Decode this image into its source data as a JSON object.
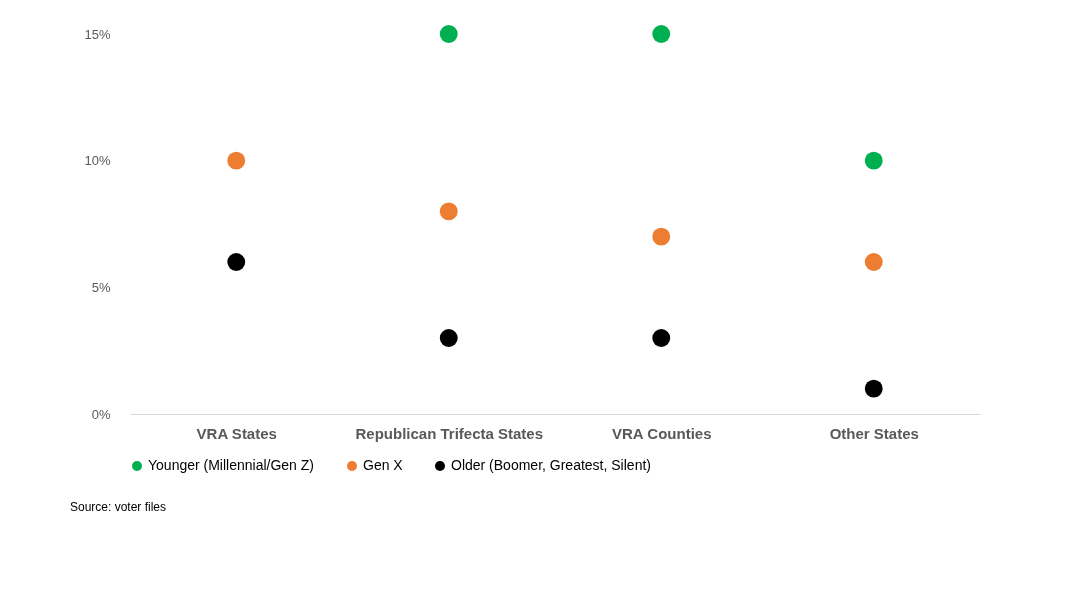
{
  "chart_data": {
    "type": "scatter",
    "categories": [
      "VRA States",
      "Republican Trifecta States",
      "VRA Counties",
      "Other States"
    ],
    "series": [
      {
        "name": "Younger (Millennial/Gen Z)",
        "color": "#00b050",
        "values": [
          null,
          15,
          15,
          10
        ]
      },
      {
        "name": "Gen X",
        "color": "#ed7d31",
        "values": [
          10,
          8,
          7,
          6
        ]
      },
      {
        "name": "Older (Boomer, Greatest, Silent)",
        "color": "#000000",
        "values": [
          6,
          3,
          3,
          1
        ]
      }
    ],
    "ylim": [
      0,
      15
    ],
    "yticks": [
      {
        "value": 0,
        "label": "0%"
      },
      {
        "value": 5,
        "label": "5%"
      },
      {
        "value": 10,
        "label": "10%"
      },
      {
        "value": 15,
        "label": "15%"
      }
    ],
    "grid": false,
    "legend": "bottom",
    "marker": "circle",
    "annotations": [
      "Source: voter files"
    ]
  }
}
